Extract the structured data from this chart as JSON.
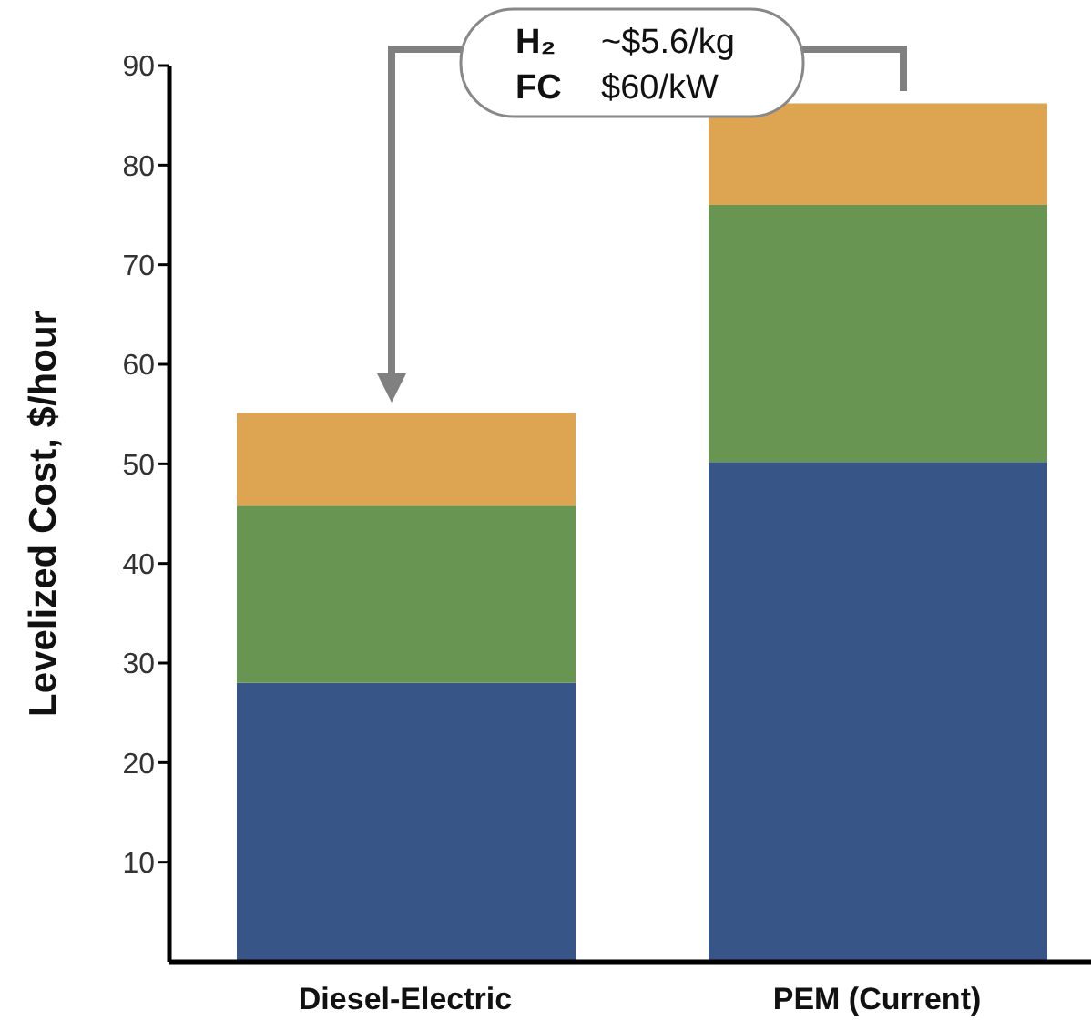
{
  "chart_data": {
    "type": "bar",
    "stacked": true,
    "ylabel": "Levelized Cost, $/hour",
    "categories": [
      "Diesel-Electric",
      "PEM (Current)"
    ],
    "series": [
      {
        "color": "#375587",
        "values": [
          28,
          50.2
        ]
      },
      {
        "color": "#699552",
        "values": [
          17.8,
          25.8
        ]
      },
      {
        "color": "#dda452",
        "values": [
          9.3,
          10.2
        ]
      }
    ],
    "ylim": [
      0,
      90
    ],
    "yticks": [
      10,
      20,
      30,
      40,
      50,
      60,
      70,
      80,
      90
    ],
    "annotations": [
      "H₂ ~$5.6/kg",
      "FC $60/kW"
    ]
  }
}
